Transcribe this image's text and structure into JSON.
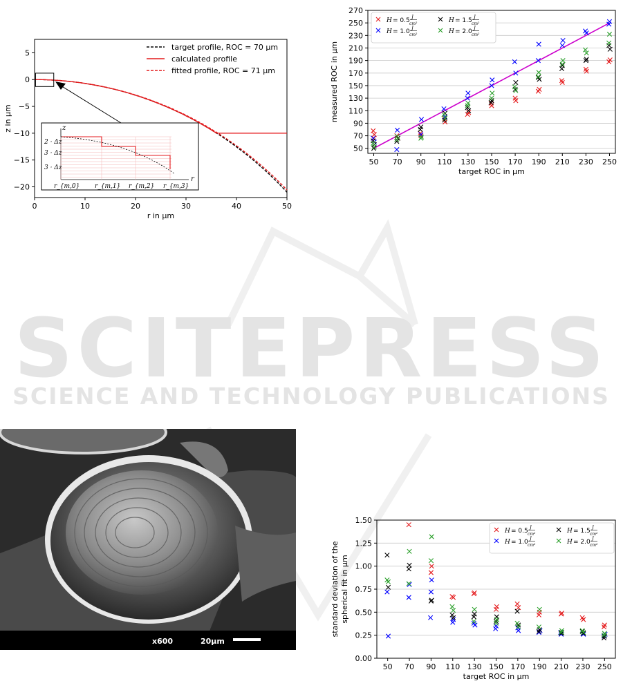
{
  "watermark": {
    "title": "SCITEPRESS",
    "subtitle": "SCIENCE AND TECHNOLOGY PUBLICATIONS"
  },
  "sem_image": {
    "magnification": "x600",
    "scale_label": "20µm"
  },
  "chart_data": [
    {
      "id": "profile",
      "type": "line",
      "xlabel": "r in µm",
      "ylabel": "z in µm",
      "xlim": [
        0,
        50
      ],
      "ylim": [
        -22,
        7.5
      ],
      "xticks": [
        "0",
        "10",
        "20",
        "30",
        "40",
        "50"
      ],
      "yticks": [
        "5",
        "0",
        "−5",
        "−10",
        "−15",
        "−20"
      ],
      "grid": false,
      "legend_position": "top-right",
      "series": [
        {
          "name": "target profile, ROC = 70 µm",
          "color": "#000000",
          "style": "dashed",
          "roc": 70,
          "flat_at": null
        },
        {
          "name": "calculated profile",
          "color": "#e41a1c",
          "style": "solid",
          "roc": 70,
          "flat_at": -10
        },
        {
          "name": "fitted profile, ROC = 71 µm",
          "color": "#e41a1c",
          "style": "dashed",
          "roc": 71,
          "flat_at": null
        }
      ],
      "inset": {
        "z_label": "z",
        "r_label": "r",
        "dz_labels": [
          "2 · Δz",
          "3 · Δz",
          "3 · Δz"
        ],
        "r_labels": [
          "r_{m,0}",
          "r_{m,1}",
          "r_{m,2}",
          "r_{m,3}"
        ]
      }
    },
    {
      "id": "roc",
      "type": "scatter",
      "xlabel": "target ROC in µm",
      "ylabel": "measured ROC in µm",
      "xlim": [
        45,
        255
      ],
      "ylim": [
        42,
        270
      ],
      "xticks": [
        50,
        70,
        90,
        110,
        130,
        150,
        170,
        190,
        210,
        230,
        250
      ],
      "yticks": [
        50,
        70,
        90,
        110,
        130,
        150,
        170,
        190,
        210,
        230,
        250,
        270
      ],
      "grid": "horizontal",
      "legend_position": "top-left",
      "reference_line": {
        "x": [
          50,
          250
        ],
        "y": [
          50,
          250
        ],
        "color": "#cc00cc"
      },
      "series": [
        {
          "name": "H = 0.5 J/cm²",
          "H": "0.5",
          "color": "#e41a1c",
          "points": [
            [
              50,
              78
            ],
            [
              50,
              72
            ],
            [
              50,
              66
            ],
            [
              70,
              70
            ],
            [
              70,
              66
            ],
            [
              90,
              70
            ],
            [
              90,
              74
            ],
            [
              110,
              92
            ],
            [
              110,
              98
            ],
            [
              130,
              104
            ],
            [
              130,
              107
            ],
            [
              150,
              118
            ],
            [
              150,
              122
            ],
            [
              170,
              126
            ],
            [
              170,
              130
            ],
            [
              190,
              141
            ],
            [
              190,
              144
            ],
            [
              210,
              155
            ],
            [
              210,
              158
            ],
            [
              230,
              173
            ],
            [
              230,
              176
            ],
            [
              250,
              188
            ],
            [
              250,
              191
            ]
          ]
        },
        {
          "name": "H = 1.0 J/cm²",
          "H": "1.0",
          "color": "#0000ff",
          "points": [
            [
              50,
              66
            ],
            [
              50,
              60
            ],
            [
              70,
              79
            ],
            [
              70,
              48
            ],
            [
              90,
              96
            ],
            [
              90,
              72
            ],
            [
              110,
              113
            ],
            [
              110,
              100
            ],
            [
              130,
              138
            ],
            [
              130,
              130
            ],
            [
              150,
              159
            ],
            [
              150,
              150
            ],
            [
              170,
              188
            ],
            [
              170,
              170
            ],
            [
              190,
              216
            ],
            [
              190,
              190
            ],
            [
              210,
              222
            ],
            [
              210,
              214
            ],
            [
              230,
              237
            ],
            [
              230,
              234
            ],
            [
              250,
              252
            ],
            [
              250,
              248
            ]
          ]
        },
        {
          "name": "H = 1.5 J/cm²",
          "H": "1.5",
          "color": "#000000",
          "points": [
            [
              50,
              62
            ],
            [
              50,
              56
            ],
            [
              50,
              50
            ],
            [
              70,
              61
            ],
            [
              70,
              66
            ],
            [
              90,
              84
            ],
            [
              90,
              80
            ],
            [
              110,
              106
            ],
            [
              110,
              95
            ],
            [
              130,
              115
            ],
            [
              130,
              110
            ],
            [
              150,
              126
            ],
            [
              150,
              123
            ],
            [
              170,
              155
            ],
            [
              170,
              144
            ],
            [
              190,
              163
            ],
            [
              190,
              160
            ],
            [
              210,
              182
            ],
            [
              210,
              177
            ],
            [
              230,
              192
            ],
            [
              230,
              190
            ],
            [
              250,
              214
            ],
            [
              250,
              208
            ]
          ]
        },
        {
          "name": "H = 2.0 J/cm²",
          "H": "2.0",
          "color": "#2ca02c",
          "points": [
            [
              50,
              58
            ],
            [
              50,
              52
            ],
            [
              70,
              69
            ],
            [
              70,
              64
            ],
            [
              90,
              68
            ],
            [
              90,
              66
            ],
            [
              110,
              104
            ],
            [
              110,
              98
            ],
            [
              130,
              122
            ],
            [
              130,
              118
            ],
            [
              150,
              138
            ],
            [
              150,
              130
            ],
            [
              170,
              148
            ],
            [
              170,
              142
            ],
            [
              190,
              171
            ],
            [
              190,
              164
            ],
            [
              210,
              190
            ],
            [
              210,
              184
            ],
            [
              230,
              207
            ],
            [
              230,
              202
            ],
            [
              250,
              232
            ],
            [
              250,
              218
            ]
          ]
        }
      ]
    },
    {
      "id": "stddev",
      "type": "scatter",
      "xlabel": "target ROC in µm",
      "ylabel_line1": "standard deviation of the",
      "ylabel_line2": "spherical fit in µm",
      "xlim": [
        40,
        260
      ],
      "ylim": [
        0,
        1.5
      ],
      "xticks": [
        50,
        70,
        90,
        110,
        130,
        150,
        170,
        190,
        210,
        230,
        250
      ],
      "yticks": [
        "0.00",
        "0.25",
        "0.50",
        "0.75",
        "1.00",
        "1.25",
        "1.50"
      ],
      "grid": "horizontal",
      "legend_position": "top-right",
      "series": [
        {
          "name": "H = 0.5 J/cm²",
          "H": "0.5",
          "color": "#e41a1c",
          "points": [
            [
              70,
              1.45
            ],
            [
              90,
              1.0
            ],
            [
              90,
              0.93
            ],
            [
              110,
              0.67
            ],
            [
              110,
              0.66
            ],
            [
              130,
              0.71
            ],
            [
              130,
              0.7
            ],
            [
              150,
              0.56
            ],
            [
              150,
              0.53
            ],
            [
              170,
              0.59
            ],
            [
              170,
              0.55
            ],
            [
              190,
              0.5
            ],
            [
              190,
              0.47
            ],
            [
              210,
              0.49
            ],
            [
              210,
              0.48
            ],
            [
              230,
              0.44
            ],
            [
              230,
              0.42
            ],
            [
              250,
              0.36
            ],
            [
              250,
              0.34
            ]
          ]
        },
        {
          "name": "H = 1.0 J/cm²",
          "H": "1.0",
          "color": "#0000ff",
          "points": [
            [
              50,
              0.72
            ],
            [
              50,
              0.24
            ],
            [
              70,
              0.8
            ],
            [
              70,
              0.66
            ],
            [
              90,
              0.85
            ],
            [
              90,
              0.72
            ],
            [
              90,
              0.44
            ],
            [
              110,
              0.42
            ],
            [
              110,
              0.39
            ],
            [
              130,
              0.38
            ],
            [
              130,
              0.36
            ],
            [
              150,
              0.35
            ],
            [
              150,
              0.32
            ],
            [
              170,
              0.3
            ],
            [
              170,
              0.33
            ],
            [
              190,
              0.28
            ],
            [
              190,
              0.3
            ],
            [
              210,
              0.26
            ],
            [
              210,
              0.28
            ],
            [
              230,
              0.26
            ],
            [
              230,
              0.27
            ],
            [
              250,
              0.24
            ],
            [
              250,
              0.26
            ]
          ]
        },
        {
          "name": "H = 1.5 J/cm²",
          "H": "1.5",
          "color": "#000000",
          "points": [
            [
              50,
              1.12
            ],
            [
              50,
              0.77
            ],
            [
              70,
              1.01
            ],
            [
              70,
              0.97
            ],
            [
              90,
              0.63
            ],
            [
              90,
              0.62
            ],
            [
              110,
              0.47
            ],
            [
              110,
              0.44
            ],
            [
              130,
              0.48
            ],
            [
              130,
              0.45
            ],
            [
              150,
              0.45
            ],
            [
              150,
              0.4
            ],
            [
              170,
              0.51
            ],
            [
              170,
              0.36
            ],
            [
              190,
              0.31
            ],
            [
              190,
              0.29
            ],
            [
              210,
              0.28
            ],
            [
              210,
              0.27
            ],
            [
              230,
              0.29
            ],
            [
              230,
              0.27
            ],
            [
              250,
              0.24
            ],
            [
              250,
              0.22
            ]
          ]
        },
        {
          "name": "H = 2.0 J/cm²",
          "H": "2.0",
          "color": "#2ca02c",
          "points": [
            [
              50,
              0.85
            ],
            [
              50,
              0.83
            ],
            [
              70,
              1.16
            ],
            [
              70,
              0.81
            ],
            [
              90,
              1.32
            ],
            [
              90,
              1.06
            ],
            [
              110,
              0.56
            ],
            [
              110,
              0.52
            ],
            [
              130,
              0.53
            ],
            [
              130,
              0.4
            ],
            [
              150,
              0.42
            ],
            [
              150,
              0.38
            ],
            [
              170,
              0.38
            ],
            [
              170,
              0.34
            ],
            [
              190,
              0.53
            ],
            [
              190,
              0.34
            ],
            [
              210,
              0.3
            ],
            [
              210,
              0.28
            ],
            [
              230,
              0.3
            ],
            [
              230,
              0.28
            ],
            [
              250,
              0.27
            ],
            [
              250,
              0.25
            ]
          ]
        }
      ]
    }
  ]
}
